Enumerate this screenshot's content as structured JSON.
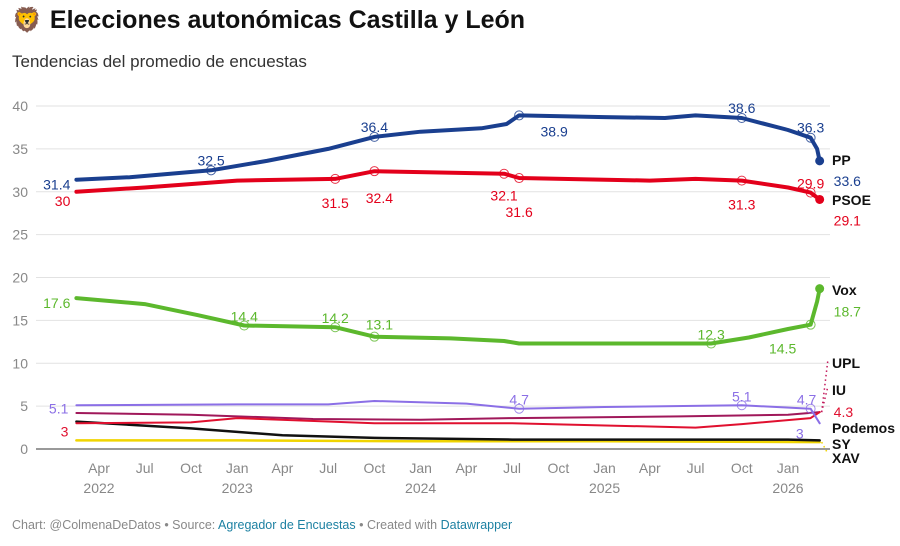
{
  "header": {
    "icon": "lion-face-icon",
    "emoji": "🦁",
    "title": "Elecciones autonómicas Castilla y León",
    "subtitle": "Tendencias del promedio de encuestas"
  },
  "footer": {
    "chart_prefix": "Chart: @ColmenaDeDatos • Source: ",
    "source_link": "Agregador de Encuestas",
    "created_prefix": " • Created with ",
    "tool_link": "Datawrapper"
  },
  "chart_data": {
    "type": "line",
    "ylim": [
      0,
      40
    ],
    "yticks": [
      0,
      5,
      10,
      15,
      20,
      25,
      30,
      35,
      40
    ],
    "xticks": [
      {
        "date": "2022-04-01",
        "label": "Apr",
        "year": "2022"
      },
      {
        "date": "2022-07-01",
        "label": "Jul"
      },
      {
        "date": "2022-10-01",
        "label": "Oct"
      },
      {
        "date": "2023-01-01",
        "label": "Jan",
        "year": "2023"
      },
      {
        "date": "2023-04-01",
        "label": "Apr"
      },
      {
        "date": "2023-07-01",
        "label": "Jul"
      },
      {
        "date": "2023-10-01",
        "label": "Oct"
      },
      {
        "date": "2024-01-01",
        "label": "Jan",
        "year": "2024"
      },
      {
        "date": "2024-04-01",
        "label": "Apr"
      },
      {
        "date": "2024-07-01",
        "label": "Jul"
      },
      {
        "date": "2024-10-01",
        "label": "Oct"
      },
      {
        "date": "2025-01-01",
        "label": "Jan",
        "year": "2025"
      },
      {
        "date": "2025-04-01",
        "label": "Apr"
      },
      {
        "date": "2025-07-01",
        "label": "Jul"
      },
      {
        "date": "2025-10-01",
        "label": "Oct"
      },
      {
        "date": "2026-01-01",
        "label": "Jan",
        "year": "2026"
      }
    ],
    "grid": true,
    "series": [
      {
        "name": "PP",
        "color": "#1a3f8f",
        "width": 4,
        "points": [
          [
            "2022-02-15",
            31.4
          ],
          [
            "2022-06-01",
            31.7
          ],
          [
            "2022-11-10",
            32.5
          ],
          [
            "2023-03-01",
            33.6
          ],
          [
            "2023-07-01",
            35
          ],
          [
            "2023-10-01",
            36.4
          ],
          [
            "2024-01-01",
            37
          ],
          [
            "2024-05-01",
            37.4
          ],
          [
            "2024-06-20",
            37.9
          ],
          [
            "2024-07-15",
            38.9
          ],
          [
            "2025-01-01",
            38.7
          ],
          [
            "2025-05-01",
            38.6
          ],
          [
            "2025-07-01",
            38.9
          ],
          [
            "2025-10-01",
            38.6
          ],
          [
            "2026-01-01",
            37.2
          ],
          [
            "2026-02-15",
            36.3
          ],
          [
            "2026-02-28",
            35
          ],
          [
            "2026-03-05",
            33.6
          ]
        ]
      },
      {
        "name": "PSOE",
        "color": "#e3001b",
        "width": 4,
        "points": [
          [
            "2022-02-15",
            30
          ],
          [
            "2022-07-01",
            30.5
          ],
          [
            "2023-01-01",
            31.3
          ],
          [
            "2023-07-15",
            31.5
          ],
          [
            "2023-10-01",
            32.4
          ],
          [
            "2024-06-15",
            32.1
          ],
          [
            "2024-07-15",
            31.6
          ],
          [
            "2025-04-01",
            31.3
          ],
          [
            "2025-07-01",
            31.5
          ],
          [
            "2025-10-01",
            31.3
          ],
          [
            "2026-01-01",
            30.5
          ],
          [
            "2026-02-15",
            29.9
          ],
          [
            "2026-03-05",
            29.1
          ]
        ]
      },
      {
        "name": "Vox",
        "color": "#5cb82d",
        "width": 4,
        "points": [
          [
            "2022-02-15",
            17.6
          ],
          [
            "2022-07-01",
            16.9
          ],
          [
            "2022-10-15",
            15.6
          ],
          [
            "2023-01-15",
            14.4
          ],
          [
            "2023-07-15",
            14.2
          ],
          [
            "2023-10-01",
            13.1
          ],
          [
            "2024-03-01",
            12.9
          ],
          [
            "2024-06-15",
            12.6
          ],
          [
            "2024-07-15",
            12.3
          ],
          [
            "2025-08-01",
            12.3
          ],
          [
            "2025-10-15",
            13
          ],
          [
            "2026-01-01",
            14
          ],
          [
            "2026-02-15",
            14.5
          ],
          [
            "2026-02-28",
            17.2
          ],
          [
            "2026-03-05",
            18.7
          ]
        ]
      },
      {
        "name": "UPL",
        "color": "#e0102f",
        "width": 2,
        "points": [
          [
            "2022-02-15",
            3
          ],
          [
            "2022-10-01",
            3.1
          ],
          [
            "2023-01-01",
            3.6
          ],
          [
            "2023-10-01",
            3.0
          ],
          [
            "2024-07-01",
            3.0
          ],
          [
            "2025-07-01",
            2.5
          ],
          [
            "2025-10-01",
            2.9
          ],
          [
            "2026-02-15",
            3.6
          ],
          [
            "2026-03-05",
            4.3
          ]
        ]
      },
      {
        "name": "IU",
        "color": "#a0185a",
        "width": 2,
        "points": [
          [
            "2022-02-15",
            4.2
          ],
          [
            "2022-10-01",
            4.0
          ],
          [
            "2023-06-01",
            3.5
          ],
          [
            "2024-01-01",
            3.4
          ],
          [
            "2024-07-01",
            3.6
          ],
          [
            "2025-06-01",
            3.8
          ],
          [
            "2026-01-01",
            4.0
          ],
          [
            "2026-03-05",
            4.3
          ]
        ]
      },
      {
        "name": "Podemos",
        "color": "#8b6fe6",
        "width": 2,
        "points": [
          [
            "2022-02-15",
            5.1
          ],
          [
            "2023-01-01",
            5.2
          ],
          [
            "2023-07-01",
            5.2
          ],
          [
            "2023-10-01",
            5.6
          ],
          [
            "2024-04-01",
            5.3
          ],
          [
            "2024-07-15",
            4.7
          ],
          [
            "2025-01-01",
            4.9
          ],
          [
            "2025-10-01",
            5.1
          ],
          [
            "2026-02-15",
            4.7
          ],
          [
            "2026-03-05",
            3
          ]
        ]
      },
      {
        "name": "SY",
        "color": "#111111",
        "width": 2.5,
        "points": [
          [
            "2022-02-15",
            3.2
          ],
          [
            "2022-10-01",
            2.4
          ],
          [
            "2023-04-01",
            1.6
          ],
          [
            "2023-10-01",
            1.3
          ],
          [
            "2024-07-01",
            1.1
          ],
          [
            "2025-07-01",
            1.1
          ],
          [
            "2026-01-01",
            1.1
          ],
          [
            "2026-03-05",
            1.0
          ]
        ]
      },
      {
        "name": "XAV",
        "color": "#f0d400",
        "width": 2.5,
        "points": [
          [
            "2022-02-15",
            1.0
          ],
          [
            "2023-01-01",
            1.0
          ],
          [
            "2024-01-01",
            0.9
          ],
          [
            "2025-01-01",
            0.9
          ],
          [
            "2026-03-05",
            0.8
          ]
        ]
      }
    ],
    "annotations": [
      {
        "series": 0,
        "date": "2022-02-15",
        "value": 31.4,
        "label": "31.4"
      },
      {
        "series": 0,
        "date": "2022-11-10",
        "value": 32.5,
        "label": "32.5",
        "circle": true
      },
      {
        "series": 0,
        "date": "2023-10-01",
        "value": 36.4,
        "label": "36.4",
        "circle": true
      },
      {
        "series": 0,
        "date": "2024-07-15",
        "value": 38.9,
        "label": "38.9",
        "circle": true
      },
      {
        "series": 0,
        "date": "2025-10-01",
        "value": 38.6,
        "label": "38.6",
        "circle": true
      },
      {
        "series": 0,
        "date": "2026-02-15",
        "value": 36.3,
        "label": "36.3",
        "circle": true
      },
      {
        "series": 0,
        "date": "2026-03-05",
        "value": 33.6,
        "label": "33.6",
        "dot": true
      },
      {
        "series": 1,
        "date": "2022-02-15",
        "value": 30,
        "label": "30"
      },
      {
        "series": 1,
        "date": "2023-07-15",
        "value": 31.5,
        "label": "31.5",
        "circle": true
      },
      {
        "series": 1,
        "date": "2023-10-01",
        "value": 32.4,
        "label": "32.4",
        "circle": true
      },
      {
        "series": 1,
        "date": "2024-06-15",
        "value": 32.1,
        "label": "32.1",
        "circle": true
      },
      {
        "series": 1,
        "date": "2024-07-15",
        "value": 31.6,
        "label": "31.6",
        "circle": true
      },
      {
        "series": 1,
        "date": "2025-10-01",
        "value": 31.3,
        "label": "31.3",
        "circle": true
      },
      {
        "series": 1,
        "date": "2026-02-15",
        "value": 29.9,
        "label": "29.9",
        "circle": true
      },
      {
        "series": 1,
        "date": "2026-03-05",
        "value": 29.1,
        "label": "29.1",
        "dot": true
      },
      {
        "series": 2,
        "date": "2022-02-15",
        "value": 17.6,
        "label": "17.6"
      },
      {
        "series": 2,
        "date": "2023-01-15",
        "value": 14.4,
        "label": "14.4",
        "circle": true
      },
      {
        "series": 2,
        "date": "2023-07-15",
        "value": 14.2,
        "label": "14.2",
        "circle": true
      },
      {
        "series": 2,
        "date": "2023-10-01",
        "value": 13.1,
        "label": "13.1",
        "circle": true
      },
      {
        "series": 2,
        "date": "2025-08-01",
        "value": 12.3,
        "label": "12.3",
        "circle": true
      },
      {
        "series": 2,
        "date": "2026-02-15",
        "value": 14.5,
        "label": "14.5",
        "circle": true
      },
      {
        "series": 2,
        "date": "2026-03-05",
        "value": 18.7,
        "label": "18.7",
        "dot": true
      },
      {
        "series": 5,
        "date": "2022-02-15",
        "value": 5.1,
        "label": "5.1"
      },
      {
        "series": 5,
        "date": "2024-07-15",
        "value": 4.7,
        "label": "4.7",
        "circle": true
      },
      {
        "series": 5,
        "date": "2025-10-01",
        "value": 5.1,
        "label": "5.1",
        "circle": true
      },
      {
        "series": 5,
        "date": "2026-02-15",
        "value": 4.7,
        "label": "4.7",
        "circle": true
      },
      {
        "series": 5,
        "date": "2026-03-05",
        "value": 3,
        "label": "3"
      },
      {
        "series": 3,
        "date": "2022-02-15",
        "value": 3,
        "label": "3"
      },
      {
        "series": 3,
        "date": "2026-03-05",
        "value": 4.3,
        "label": "4.3"
      }
    ]
  }
}
